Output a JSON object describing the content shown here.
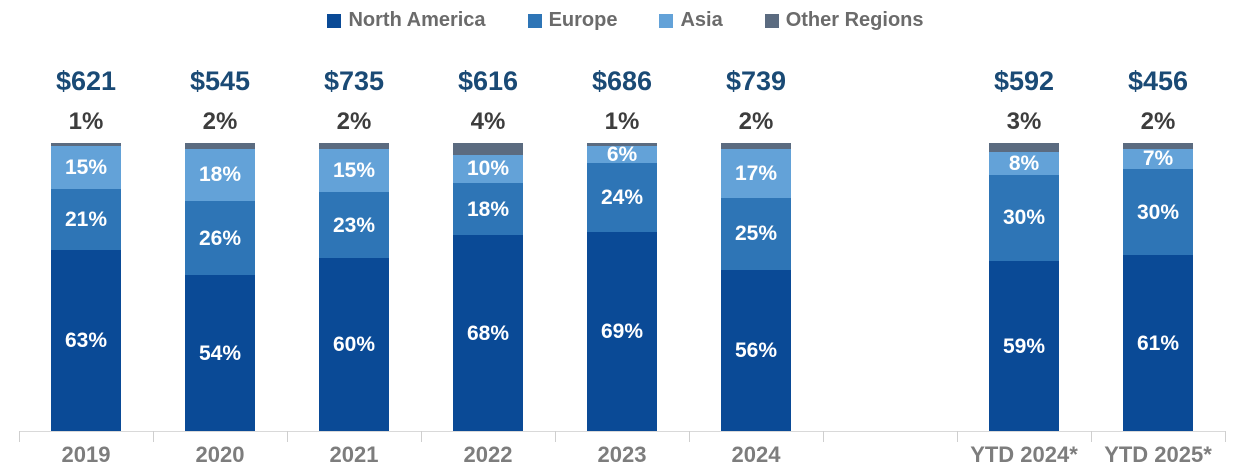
{
  "legend": {
    "items": [
      {
        "label": "North America",
        "color": "#0a4a96"
      },
      {
        "label": "Europe",
        "color": "#2e75b6"
      },
      {
        "label": "Asia",
        "color": "#63a2d8"
      },
      {
        "label": "Other Regions",
        "color": "#5b6b80"
      }
    ]
  },
  "chart_data": {
    "type": "bar",
    "stacked": true,
    "title": "",
    "xlabel": "",
    "ylabel": "",
    "unit": "percent of total",
    "legend_position": "top-center",
    "grid": false,
    "categories": [
      "2019",
      "2020",
      "2021",
      "2022",
      "2023",
      "2024",
      "",
      "YTD 2024*",
      "YTD 2025*"
    ],
    "totals": [
      "$621",
      "$545",
      "$735",
      "$616",
      "$686",
      "$739",
      "",
      "$592",
      "$456"
    ],
    "series": [
      {
        "name": "North America",
        "color": "#0a4a96",
        "values": [
          63,
          54,
          60,
          68,
          69,
          56,
          null,
          59,
          61
        ],
        "labels": [
          "63%",
          "54%",
          "60%",
          "68%",
          "69%",
          "56%",
          "",
          "59%",
          "61%"
        ]
      },
      {
        "name": "Europe",
        "color": "#2e75b6",
        "values": [
          21,
          26,
          23,
          18,
          24,
          25,
          null,
          30,
          30
        ],
        "labels": [
          "21%",
          "26%",
          "23%",
          "18%",
          "24%",
          "25%",
          "",
          "30%",
          "30%"
        ]
      },
      {
        "name": "Asia",
        "color": "#63a2d8",
        "values": [
          15,
          18,
          15,
          10,
          6,
          17,
          null,
          8,
          7
        ],
        "labels": [
          "15%",
          "18%",
          "15%",
          "10%",
          "6%",
          "17%",
          "",
          "8%",
          "7%"
        ]
      },
      {
        "name": "Other Regions",
        "color": "#5b6b80",
        "values": [
          1,
          2,
          2,
          4,
          1,
          2,
          null,
          3,
          2
        ],
        "labels": [
          "1%",
          "2%",
          "2%",
          "4%",
          "1%",
          "2%",
          "",
          "3%",
          "2%"
        ]
      }
    ]
  }
}
